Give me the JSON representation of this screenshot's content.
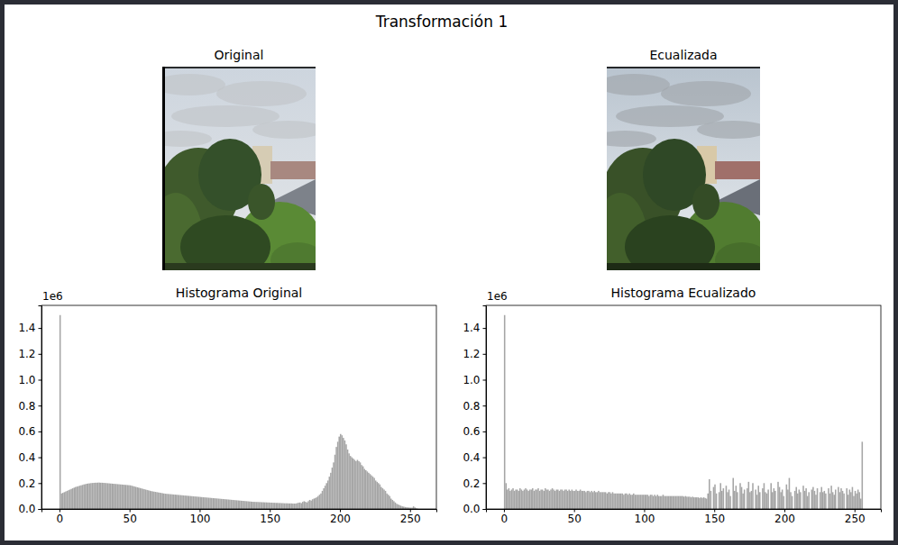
{
  "title": "Transformación 1",
  "chart_data": [
    {
      "type": "image",
      "title": "Original"
    },
    {
      "type": "image",
      "title": "Ecualizada"
    },
    {
      "type": "histogram",
      "title": "Histograma Original",
      "color": "#a6a6a6",
      "annotation": "1e6",
      "xlim": [
        -12.8,
        268.8
      ],
      "xticks": [
        0,
        50,
        100,
        150,
        200,
        250
      ],
      "ylim": [
        0,
        1.575
      ],
      "yticks": [
        {
          "value": 0,
          "label": "0.0"
        },
        {
          "value": 0.2,
          "label": "0.2"
        },
        {
          "value": 0.4,
          "label": "0.4"
        },
        {
          "value": 0.6,
          "label": "0.6"
        },
        {
          "value": 0.8,
          "label": "0.8"
        },
        {
          "value": 1.0,
          "label": "1.0"
        },
        {
          "value": 1.2,
          "label": "1.2"
        },
        {
          "value": 1.4,
          "label": "1.4"
        }
      ],
      "bins": [
        0,
        1,
        2,
        3,
        4,
        5,
        6,
        7,
        8,
        9,
        10,
        11,
        12,
        13,
        14,
        15,
        16,
        17,
        18,
        19,
        20,
        21,
        22,
        23,
        24,
        25,
        26,
        27,
        28,
        29,
        30,
        31,
        32,
        33,
        34,
        35,
        36,
        37,
        38,
        39,
        40,
        41,
        42,
        43,
        44,
        45,
        46,
        47,
        48,
        49,
        50,
        51,
        52,
        53,
        54,
        55,
        56,
        57,
        58,
        59,
        60,
        61,
        62,
        63,
        64,
        65,
        66,
        67,
        68,
        69,
        70,
        71,
        72,
        73,
        74,
        75,
        76,
        77,
        78,
        79,
        80,
        81,
        82,
        83,
        84,
        85,
        86,
        87,
        88,
        89,
        90,
        91,
        92,
        93,
        94,
        95,
        96,
        97,
        98,
        99,
        100,
        101,
        102,
        103,
        104,
        105,
        106,
        107,
        108,
        109,
        110,
        111,
        112,
        113,
        114,
        115,
        116,
        117,
        118,
        119,
        120,
        121,
        122,
        123,
        124,
        125,
        126,
        127,
        128,
        129,
        130,
        131,
        132,
        133,
        134,
        135,
        136,
        137,
        138,
        139,
        140,
        141,
        142,
        143,
        144,
        145,
        146,
        147,
        148,
        149,
        150,
        151,
        152,
        153,
        154,
        155,
        156,
        157,
        158,
        159,
        160,
        161,
        162,
        163,
        164,
        165,
        166,
        167,
        168,
        169,
        170,
        171,
        172,
        173,
        174,
        175,
        176,
        177,
        178,
        179,
        180,
        181,
        182,
        183,
        184,
        185,
        186,
        187,
        188,
        189,
        190,
        191,
        192,
        193,
        194,
        195,
        196,
        197,
        198,
        199,
        200,
        201,
        202,
        203,
        204,
        205,
        206,
        207,
        208,
        209,
        210,
        211,
        212,
        213,
        214,
        215,
        216,
        217,
        218,
        219,
        220,
        221,
        222,
        223,
        224,
        225,
        226,
        227,
        228,
        229,
        230,
        231,
        232,
        233,
        234,
        235,
        236,
        237,
        238,
        239,
        240,
        241,
        242,
        243,
        244,
        245,
        246,
        247,
        248,
        249,
        250,
        251,
        252,
        253,
        254,
        255,
        256
      ],
      "values": [
        1.5,
        0.12,
        0.125,
        0.13,
        0.135,
        0.14,
        0.145,
        0.15,
        0.155,
        0.16,
        0.165,
        0.17,
        0.173,
        0.176,
        0.18,
        0.183,
        0.186,
        0.19,
        0.192,
        0.195,
        0.197,
        0.198,
        0.2,
        0.201,
        0.202,
        0.203,
        0.203,
        0.204,
        0.204,
        0.203,
        0.203,
        0.202,
        0.201,
        0.2,
        0.199,
        0.198,
        0.197,
        0.196,
        0.195,
        0.194,
        0.193,
        0.192,
        0.191,
        0.19,
        0.189,
        0.188,
        0.187,
        0.186,
        0.185,
        0.184,
        0.183,
        0.18,
        0.177,
        0.174,
        0.171,
        0.168,
        0.165,
        0.162,
        0.159,
        0.156,
        0.153,
        0.15,
        0.147,
        0.144,
        0.141,
        0.138,
        0.136,
        0.134,
        0.132,
        0.13,
        0.128,
        0.126,
        0.124,
        0.122,
        0.12,
        0.118,
        0.117,
        0.116,
        0.115,
        0.114,
        0.113,
        0.112,
        0.111,
        0.11,
        0.109,
        0.108,
        0.107,
        0.106,
        0.105,
        0.104,
        0.103,
        0.102,
        0.101,
        0.1,
        0.099,
        0.098,
        0.097,
        0.096,
        0.095,
        0.094,
        0.093,
        0.092,
        0.091,
        0.09,
        0.089,
        0.088,
        0.087,
        0.086,
        0.085,
        0.084,
        0.083,
        0.082,
        0.081,
        0.08,
        0.079,
        0.078,
        0.077,
        0.076,
        0.075,
        0.074,
        0.073,
        0.072,
        0.071,
        0.07,
        0.069,
        0.068,
        0.067,
        0.066,
        0.065,
        0.064,
        0.063,
        0.062,
        0.061,
        0.06,
        0.059,
        0.058,
        0.057,
        0.056,
        0.055,
        0.055,
        0.054,
        0.054,
        0.053,
        0.053,
        0.052,
        0.052,
        0.051,
        0.051,
        0.05,
        0.05,
        0.049,
        0.049,
        0.048,
        0.048,
        0.047,
        0.047,
        0.046,
        0.046,
        0.045,
        0.045,
        0.044,
        0.044,
        0.044,
        0.043,
        0.043,
        0.043,
        0.042,
        0.042,
        0.042,
        0.045,
        0.048,
        0.05,
        0.045,
        0.055,
        0.06,
        0.055,
        0.05,
        0.06,
        0.07,
        0.065,
        0.075,
        0.08,
        0.085,
        0.09,
        0.1,
        0.11,
        0.12,
        0.14,
        0.16,
        0.18,
        0.2,
        0.22,
        0.25,
        0.28,
        0.32,
        0.36,
        0.42,
        0.48,
        0.52,
        0.56,
        0.58,
        0.57,
        0.55,
        0.53,
        0.5,
        0.46,
        0.43,
        0.41,
        0.4,
        0.39,
        0.38,
        0.37,
        0.38,
        0.37,
        0.36,
        0.34,
        0.33,
        0.31,
        0.3,
        0.29,
        0.28,
        0.27,
        0.26,
        0.25,
        0.24,
        0.22,
        0.21,
        0.2,
        0.19,
        0.17,
        0.16,
        0.15,
        0.14,
        0.12,
        0.11,
        0.1,
        0.08,
        0.07,
        0.06,
        0.05,
        0.04,
        0.035,
        0.03,
        0.025,
        0.02,
        0.018,
        0.015,
        0.013,
        0.012,
        0.011,
        0.01,
        0.01,
        0.02,
        0.012,
        0.005,
        0.002
      ]
    },
    {
      "type": "histogram",
      "title": "Histograma Ecualizado",
      "color": "#a6a6a6",
      "annotation": "1e6",
      "xlim": [
        -12.8,
        268.8
      ],
      "xticks": [
        0,
        50,
        100,
        150,
        200,
        250
      ],
      "ylim": [
        0,
        1.575
      ],
      "yticks": [
        {
          "value": 0,
          "label": "0.0"
        },
        {
          "value": 0.2,
          "label": "0.2"
        },
        {
          "value": 0.4,
          "label": "0.4"
        },
        {
          "value": 0.6,
          "label": "0.6"
        },
        {
          "value": 0.8,
          "label": "0.8"
        },
        {
          "value": 1.0,
          "label": "1.0"
        },
        {
          "value": 1.2,
          "label": "1.2"
        },
        {
          "value": 1.4,
          "label": "1.4"
        }
      ],
      "bins": [
        0,
        1,
        2,
        3,
        4,
        5,
        6,
        7,
        8,
        9,
        10,
        11,
        12,
        13,
        14,
        15,
        16,
        17,
        18,
        19,
        20,
        21,
        22,
        23,
        24,
        25,
        26,
        27,
        28,
        29,
        30,
        31,
        32,
        33,
        34,
        35,
        36,
        37,
        38,
        39,
        40,
        41,
        42,
        43,
        44,
        45,
        46,
        47,
        48,
        49,
        50,
        51,
        52,
        53,
        54,
        55,
        56,
        57,
        58,
        59,
        60,
        61,
        62,
        63,
        64,
        65,
        66,
        67,
        68,
        69,
        70,
        71,
        72,
        73,
        74,
        75,
        76,
        77,
        78,
        79,
        80,
        81,
        82,
        83,
        84,
        85,
        86,
        87,
        88,
        89,
        90,
        91,
        92,
        93,
        94,
        95,
        96,
        97,
        98,
        99,
        100,
        101,
        102,
        103,
        104,
        105,
        106,
        107,
        108,
        109,
        110,
        111,
        112,
        113,
        114,
        115,
        116,
        117,
        118,
        119,
        120,
        121,
        122,
        123,
        124,
        125,
        126,
        127,
        128,
        129,
        130,
        131,
        132,
        133,
        134,
        135,
        136,
        137,
        138,
        139,
        140,
        141,
        142,
        143,
        144,
        145,
        146,
        147,
        148,
        149,
        150,
        151,
        152,
        153,
        154,
        155,
        156,
        157,
        158,
        159,
        160,
        161,
        162,
        163,
        164,
        165,
        166,
        167,
        168,
        169,
        170,
        171,
        172,
        173,
        174,
        175,
        176,
        177,
        178,
        179,
        180,
        181,
        182,
        183,
        184,
        185,
        186,
        187,
        188,
        189,
        190,
        191,
        192,
        193,
        194,
        195,
        196,
        197,
        198,
        199,
        200,
        201,
        202,
        203,
        204,
        205,
        206,
        207,
        208,
        209,
        210,
        211,
        212,
        213,
        214,
        215,
        216,
        217,
        218,
        219,
        220,
        221,
        222,
        223,
        224,
        225,
        226,
        227,
        228,
        229,
        230,
        231,
        232,
        233,
        234,
        235,
        236,
        237,
        238,
        239,
        240,
        241,
        242,
        243,
        244,
        245,
        246,
        247,
        248,
        249,
        250,
        251,
        252,
        253,
        254,
        255,
        256
      ],
      "values": [
        1.5,
        0.2,
        0.15,
        0.16,
        0.14,
        0.15,
        0.16,
        0.14,
        0.15,
        0.15,
        0.14,
        0.16,
        0.15,
        0.14,
        0.15,
        0.16,
        0.15,
        0.14,
        0.15,
        0.15,
        0.16,
        0.14,
        0.15,
        0.15,
        0.16,
        0.14,
        0.15,
        0.15,
        0.14,
        0.16,
        0.15,
        0.15,
        0.14,
        0.15,
        0.16,
        0.15,
        0.14,
        0.15,
        0.15,
        0.14,
        0.15,
        0.15,
        0.14,
        0.15,
        0.15,
        0.14,
        0.15,
        0.14,
        0.15,
        0.14,
        0.14,
        0.15,
        0.14,
        0.14,
        0.15,
        0.14,
        0.14,
        0.14,
        0.13,
        0.14,
        0.14,
        0.13,
        0.14,
        0.13,
        0.14,
        0.13,
        0.13,
        0.14,
        0.13,
        0.13,
        0.13,
        0.13,
        0.13,
        0.12,
        0.13,
        0.13,
        0.12,
        0.13,
        0.12,
        0.12,
        0.12,
        0.12,
        0.12,
        0.12,
        0.12,
        0.11,
        0.12,
        0.12,
        0.11,
        0.12,
        0.11,
        0.11,
        0.12,
        0.11,
        0.11,
        0.11,
        0.11,
        0.11,
        0.11,
        0.11,
        0.11,
        0.11,
        0.11,
        0.1,
        0.11,
        0.11,
        0.1,
        0.11,
        0.1,
        0.11,
        0.1,
        0.1,
        0.1,
        0.11,
        0.1,
        0.1,
        0.1,
        0.1,
        0.1,
        0.1,
        0.1,
        0.1,
        0.1,
        0.1,
        0.1,
        0.1,
        0.1,
        0.1,
        0.095,
        0.1,
        0.095,
        0.095,
        0.095,
        0.09,
        0.095,
        0.09,
        0.09,
        0.09,
        0.09,
        0.085,
        0.09,
        0.085,
        0.09,
        0.085,
        0.08,
        0.12,
        0.23,
        0.14,
        0,
        0.17,
        0.19,
        0.12,
        0,
        0.13,
        0.2,
        0.14,
        0.16,
        0,
        0.18,
        0.13,
        0.15,
        0.1,
        0,
        0.24,
        0.14,
        0.18,
        0.13,
        0,
        0.2,
        0.17,
        0.12,
        0.15,
        0,
        0.16,
        0.21,
        0.13,
        0.14,
        0.2,
        0,
        0.15,
        0.11,
        0.18,
        0.13,
        0,
        0.16,
        0.2,
        0.13,
        0.12,
        0.15,
        0,
        0.2,
        0.13,
        0.16,
        0.14,
        0,
        0.21,
        0.17,
        0.13,
        0.15,
        0.1,
        0,
        0.19,
        0.15,
        0.24,
        0.13,
        0.1,
        0,
        0.14,
        0.17,
        0.12,
        0.15,
        0.13,
        0,
        0.18,
        0.14,
        0.16,
        0.1,
        0.13,
        0,
        0.15,
        0.17,
        0.14,
        0.11,
        0.16,
        0,
        0.13,
        0.17,
        0.13,
        0.14,
        0.12,
        0,
        0.16,
        0.12,
        0.18,
        0.13,
        0.11,
        0.15,
        0,
        0.17,
        0.13,
        0.16,
        0.14,
        0.12,
        0,
        0.16,
        0.11,
        0.15,
        0.13,
        0.17,
        0.1,
        0.14,
        0.12,
        0.15,
        0.13,
        0.08,
        0.52
      ]
    }
  ]
}
